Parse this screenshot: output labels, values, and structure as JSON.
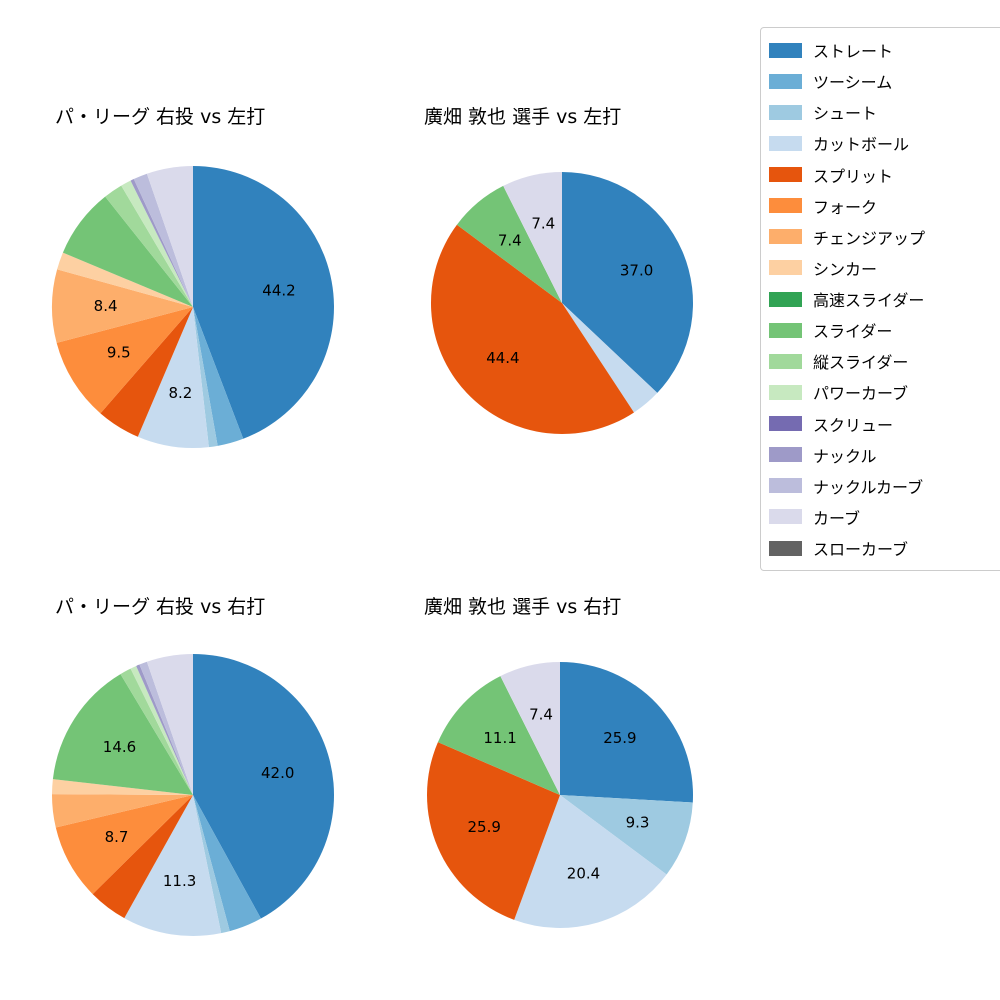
{
  "figure_title": "",
  "legend": {
    "position": "top-right",
    "items": [
      {
        "label": "ストレート",
        "color": "#3182bd"
      },
      {
        "label": "ツーシーム",
        "color": "#6baed6"
      },
      {
        "label": "シュート",
        "color": "#9ecae1"
      },
      {
        "label": "カットボール",
        "color": "#c6dbef"
      },
      {
        "label": "スプリット",
        "color": "#e6550d"
      },
      {
        "label": "フォーク",
        "color": "#fd8d3c"
      },
      {
        "label": "チェンジアップ",
        "color": "#fdae6b"
      },
      {
        "label": "シンカー",
        "color": "#fdd0a2"
      },
      {
        "label": "高速スライダー",
        "color": "#31a354"
      },
      {
        "label": "スライダー",
        "color": "#74c476"
      },
      {
        "label": "縦スライダー",
        "color": "#a1d99b"
      },
      {
        "label": "パワーカーブ",
        "color": "#c7e9c0"
      },
      {
        "label": "スクリュー",
        "color": "#756bb1"
      },
      {
        "label": "ナックル",
        "color": "#9e9ac8"
      },
      {
        "label": "ナックルカーブ",
        "color": "#bcbddc"
      },
      {
        "label": "カーブ",
        "color": "#dadaeb"
      },
      {
        "label": "スローカーブ",
        "color": "#636363"
      }
    ]
  },
  "chart_data": [
    {
      "id": "top-left",
      "type": "pie",
      "title": "パ・リーグ 右投 vs 左打",
      "start_angle_deg": 90,
      "direction": "clockwise",
      "unlabeled_values_estimated": true,
      "slices": [
        {
          "name": "ストレート",
          "value": 44.2,
          "label": "44.2"
        },
        {
          "name": "ツーシーム",
          "value": 3.0,
          "label": ""
        },
        {
          "name": "シュート",
          "value": 1.0,
          "label": ""
        },
        {
          "name": "カットボール",
          "value": 8.2,
          "label": "8.2"
        },
        {
          "name": "スプリット",
          "value": 5.0,
          "label": ""
        },
        {
          "name": "フォーク",
          "value": 9.5,
          "label": "9.5"
        },
        {
          "name": "チェンジアップ",
          "value": 8.4,
          "label": "8.4"
        },
        {
          "name": "シンカー",
          "value": 2.0,
          "label": ""
        },
        {
          "name": "スライダー",
          "value": 8.0,
          "label": ""
        },
        {
          "name": "縦スライダー",
          "value": 2.2,
          "label": ""
        },
        {
          "name": "パワーカーブ",
          "value": 1.2,
          "label": ""
        },
        {
          "name": "ナックル",
          "value": 0.4,
          "label": ""
        },
        {
          "name": "ナックルカーブ",
          "value": 1.6,
          "label": ""
        },
        {
          "name": "カーブ",
          "value": 5.3,
          "label": ""
        }
      ]
    },
    {
      "id": "top-right",
      "type": "pie",
      "title": "廣畑 敦也 選手 vs 左打",
      "start_angle_deg": 90,
      "direction": "clockwise",
      "unlabeled_values_estimated": true,
      "slices": [
        {
          "name": "ストレート",
          "value": 37.0,
          "label": "37.0"
        },
        {
          "name": "カットボール",
          "value": 3.7,
          "label": ""
        },
        {
          "name": "スプリット",
          "value": 44.4,
          "label": "44.4"
        },
        {
          "name": "スライダー",
          "value": 7.4,
          "label": "7.4"
        },
        {
          "name": "カーブ",
          "value": 7.4,
          "label": "7.4"
        }
      ]
    },
    {
      "id": "bottom-left",
      "type": "pie",
      "title": "パ・リーグ 右投 vs 右打",
      "start_angle_deg": 90,
      "direction": "clockwise",
      "unlabeled_values_estimated": true,
      "slices": [
        {
          "name": "ストレート",
          "value": 42.0,
          "label": "42.0"
        },
        {
          "name": "ツーシーム",
          "value": 3.8,
          "label": ""
        },
        {
          "name": "シュート",
          "value": 1.0,
          "label": ""
        },
        {
          "name": "カットボール",
          "value": 11.3,
          "label": "11.3"
        },
        {
          "name": "スプリット",
          "value": 4.5,
          "label": ""
        },
        {
          "name": "フォーク",
          "value": 8.7,
          "label": "8.7"
        },
        {
          "name": "チェンジアップ",
          "value": 3.8,
          "label": ""
        },
        {
          "name": "シンカー",
          "value": 1.7,
          "label": ""
        },
        {
          "name": "スライダー",
          "value": 14.6,
          "label": "14.6"
        },
        {
          "name": "縦スライダー",
          "value": 1.3,
          "label": ""
        },
        {
          "name": "パワーカーブ",
          "value": 0.7,
          "label": ""
        },
        {
          "name": "ナックル",
          "value": 0.4,
          "label": ""
        },
        {
          "name": "ナックルカーブ",
          "value": 0.9,
          "label": ""
        },
        {
          "name": "カーブ",
          "value": 5.3,
          "label": ""
        }
      ]
    },
    {
      "id": "bottom-right",
      "type": "pie",
      "title": "廣畑 敦也 選手 vs 右打",
      "start_angle_deg": 90,
      "direction": "clockwise",
      "unlabeled_values_estimated": false,
      "slices": [
        {
          "name": "ストレート",
          "value": 25.9,
          "label": "25.9"
        },
        {
          "name": "シュート",
          "value": 9.3,
          "label": "9.3"
        },
        {
          "name": "カットボール",
          "value": 20.4,
          "label": "20.4"
        },
        {
          "name": "スプリット",
          "value": 25.9,
          "label": "25.9"
        },
        {
          "name": "スライダー",
          "value": 11.1,
          "label": "11.1"
        },
        {
          "name": "カーブ",
          "value": 7.4,
          "label": "7.4"
        }
      ]
    }
  ]
}
